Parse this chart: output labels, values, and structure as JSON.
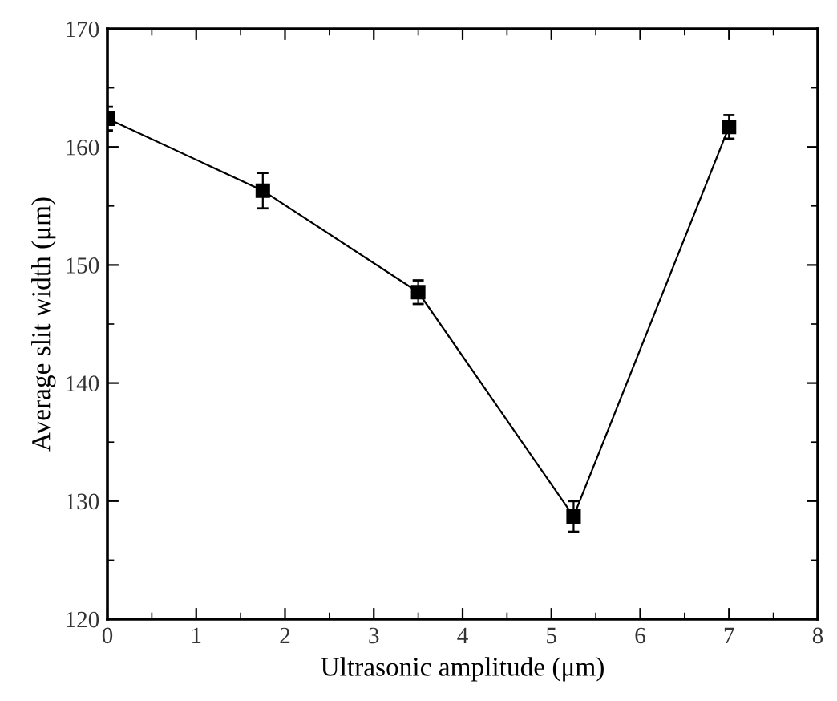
{
  "chart_data": {
    "type": "line",
    "xlabel": "Ultrasonic amplitude (μm)",
    "ylabel": "Average slit width (μm)",
    "x": [
      0,
      1.75,
      3.5,
      5.25,
      7
    ],
    "series": [
      {
        "color": "#000000",
        "values": [
          162.4,
          156.3,
          147.7,
          128.7,
          161.7
        ],
        "errors": [
          1.0,
          1.5,
          1.0,
          1.3,
          1.0
        ]
      }
    ],
    "xlim": [
      0,
      8
    ],
    "xticks": [
      0,
      1,
      2,
      3,
      4,
      5,
      6,
      7,
      8
    ],
    "ylim": [
      120,
      170
    ],
    "yticks": [
      120,
      130,
      140,
      150,
      160,
      170
    ],
    "grid": false,
    "legend": false,
    "marker": "square",
    "line_style": "solid"
  }
}
